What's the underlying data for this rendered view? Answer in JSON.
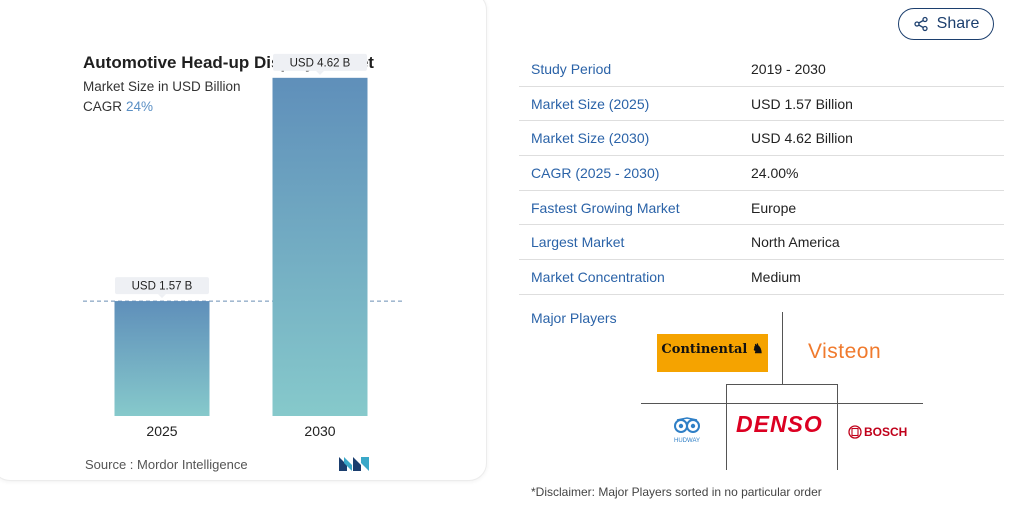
{
  "chart_data": {
    "type": "bar",
    "title": "Automotive Head-up Display Market",
    "subtitle": "Market Size in USD Billion",
    "cagr_label": "CAGR",
    "cagr_value": "24%",
    "categories": [
      "2025",
      "2030"
    ],
    "values": [
      1.57,
      4.62
    ],
    "data_labels": [
      "USD 1.57 B",
      "USD 4.62 B"
    ],
    "ylim": [
      0,
      5.0
    ],
    "xlabel": "",
    "ylabel": "",
    "reference_line": 1.57,
    "colors": {
      "bar_top": "#5f8fba",
      "bar_bottom": "#86c9cb",
      "reference": "#6b8fb5",
      "label_bg": "#eef0f4"
    }
  },
  "source": {
    "label": "Source :",
    "name": "Mordor Intelligence"
  },
  "share": {
    "label": "Share",
    "icon": "share-icon"
  },
  "table": [
    {
      "label": "Study Period",
      "value": "2019 - 2030"
    },
    {
      "label": "Market Size (2025)",
      "value": "USD 1.57 Billion"
    },
    {
      "label": "Market Size (2030)",
      "value": "USD 4.62 Billion"
    },
    {
      "label": "CAGR (2025 - 2030)",
      "value": "24.00%"
    },
    {
      "label": "Fastest Growing Market",
      "value": "Europe"
    },
    {
      "label": "Largest Market",
      "value": "North America"
    },
    {
      "label": "Market Concentration",
      "value": "Medium"
    }
  ],
  "major_players": {
    "label": "Major Players",
    "players": [
      "Continental",
      "Visteon",
      "Hudway",
      "DENSO",
      "BOSCH"
    ]
  },
  "disclaimer": "*Disclaimer: Major Players sorted in no particular order",
  "accent": "#2b63a8"
}
